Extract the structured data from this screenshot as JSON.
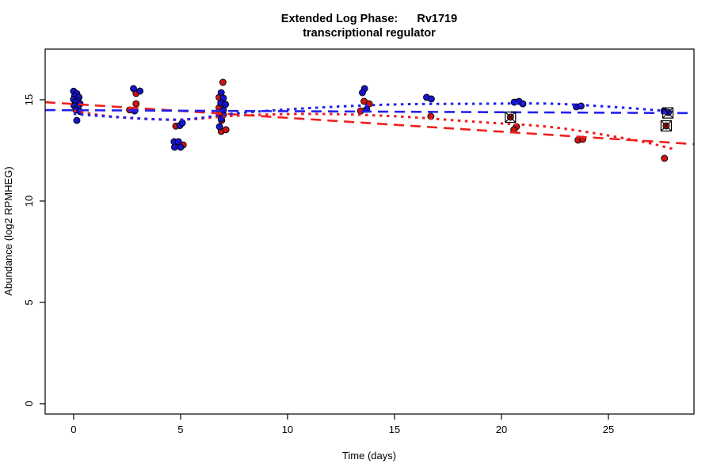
{
  "chart_data": {
    "type": "scatter",
    "title_line1": "Extended Log Phase:      Rv1719",
    "title_line2": "transcriptional regulator",
    "xlabel": "Time  (days)",
    "ylabel": "Abundance  (log2 RPMHEG)",
    "xlim": [
      -1.33,
      29.0
    ],
    "ylim": [
      -0.51,
      17.5
    ],
    "x_ticks": [
      0,
      5,
      10,
      15,
      20,
      25
    ],
    "y_ticks": [
      0,
      5,
      10,
      15
    ],
    "grid": false,
    "legend": "none",
    "colors": {
      "blue_point": "#1414CC",
      "red_point": "#CC1414",
      "blue_line": "#2222EE",
      "red_line": "#EE2020",
      "outline": "#000000"
    },
    "series": [
      {
        "name": "blue",
        "color_key": "blue_point",
        "points": [
          [
            0.0,
            15.42
          ],
          [
            0.15,
            15.3
          ],
          [
            0.05,
            15.18
          ],
          [
            0.25,
            15.12
          ],
          [
            0.0,
            15.02
          ],
          [
            0.2,
            14.95
          ],
          [
            0.1,
            14.88
          ],
          [
            0.3,
            14.8
          ],
          [
            0.05,
            14.7
          ],
          [
            0.2,
            14.6
          ],
          [
            0.1,
            14.5
          ],
          [
            0.3,
            14.42
          ],
          [
            0.15,
            13.98
          ],
          [
            2.8,
            15.55
          ],
          [
            3.1,
            15.43
          ],
          [
            2.85,
            14.45
          ],
          [
            4.97,
            13.73
          ],
          [
            5.08,
            13.86
          ],
          [
            4.7,
            12.93
          ],
          [
            4.9,
            12.93
          ],
          [
            4.72,
            12.66
          ],
          [
            5.0,
            12.66
          ],
          [
            6.9,
            15.35
          ],
          [
            7.0,
            15.08
          ],
          [
            6.88,
            14.84
          ],
          [
            7.1,
            14.77
          ],
          [
            7.0,
            14.49
          ],
          [
            6.9,
            14.06
          ],
          [
            6.82,
            13.67
          ],
          [
            13.6,
            15.55
          ],
          [
            13.5,
            15.35
          ],
          [
            13.7,
            14.53
          ],
          [
            16.5,
            15.12
          ],
          [
            16.72,
            15.04
          ],
          [
            20.6,
            14.88
          ],
          [
            20.82,
            14.92
          ],
          [
            21.0,
            14.8
          ],
          [
            23.5,
            14.65
          ],
          [
            23.72,
            14.69
          ],
          [
            27.6,
            14.45
          ],
          [
            27.8,
            14.37
          ]
        ]
      },
      {
        "name": "red",
        "color_key": "red_point",
        "points": [
          [
            0.1,
            14.92
          ],
          [
            0.22,
            14.8
          ],
          [
            0.02,
            14.72
          ],
          [
            2.92,
            15.31
          ],
          [
            2.62,
            14.5
          ],
          [
            2.92,
            14.8
          ],
          [
            4.78,
            13.7
          ],
          [
            5.12,
            12.77
          ],
          [
            6.98,
            15.86
          ],
          [
            6.8,
            15.12
          ],
          [
            6.8,
            14.61
          ],
          [
            6.8,
            14.34
          ],
          [
            7.0,
            14.26
          ],
          [
            6.92,
            13.98
          ],
          [
            6.9,
            13.44
          ],
          [
            7.12,
            13.52
          ],
          [
            13.58,
            14.92
          ],
          [
            13.82,
            14.8
          ],
          [
            13.42,
            14.45
          ],
          [
            16.7,
            14.18
          ],
          [
            20.42,
            14.14
          ],
          [
            20.7,
            13.67
          ],
          [
            20.58,
            13.52
          ],
          [
            23.58,
            13.01
          ],
          [
            23.8,
            13.05
          ],
          [
            27.7,
            13.71
          ],
          [
            27.62,
            12.11
          ]
        ]
      }
    ],
    "outlier_markers": [
      [
        20.42,
        14.14
      ],
      [
        27.78,
        14.35
      ],
      [
        27.7,
        13.71
      ]
    ],
    "trend_lines": [
      {
        "name": "red-linear-fit",
        "style": "dashed",
        "color_key": "red_line",
        "points": [
          [
            -1.33,
            14.88
          ],
          [
            29.0,
            12.81
          ]
        ]
      },
      {
        "name": "blue-linear-fit",
        "style": "dashed",
        "color_key": "blue_line",
        "points": [
          [
            -1.33,
            14.49
          ],
          [
            29.0,
            14.34
          ]
        ]
      },
      {
        "name": "red-loess-fit",
        "style": "dotted",
        "color_key": "red_line",
        "points": [
          [
            0,
            14.45
          ],
          [
            2.1,
            14.14
          ],
          [
            5,
            14.02
          ],
          [
            7.7,
            14.22
          ],
          [
            11.4,
            14.3
          ],
          [
            15.1,
            14.18
          ],
          [
            18.8,
            13.91
          ],
          [
            22.5,
            13.63
          ],
          [
            26.2,
            13.01
          ],
          [
            28,
            12.58
          ]
        ]
      },
      {
        "name": "blue-loess-fit",
        "style": "dotted",
        "color_key": "blue_line",
        "points": [
          [
            0,
            14.3
          ],
          [
            2.1,
            14.14
          ],
          [
            5,
            14.02
          ],
          [
            7.7,
            14.34
          ],
          [
            11.4,
            14.61
          ],
          [
            15.1,
            14.77
          ],
          [
            18.8,
            14.8
          ],
          [
            22.5,
            14.8
          ],
          [
            26.2,
            14.57
          ],
          [
            28,
            14.41
          ]
        ]
      }
    ]
  }
}
